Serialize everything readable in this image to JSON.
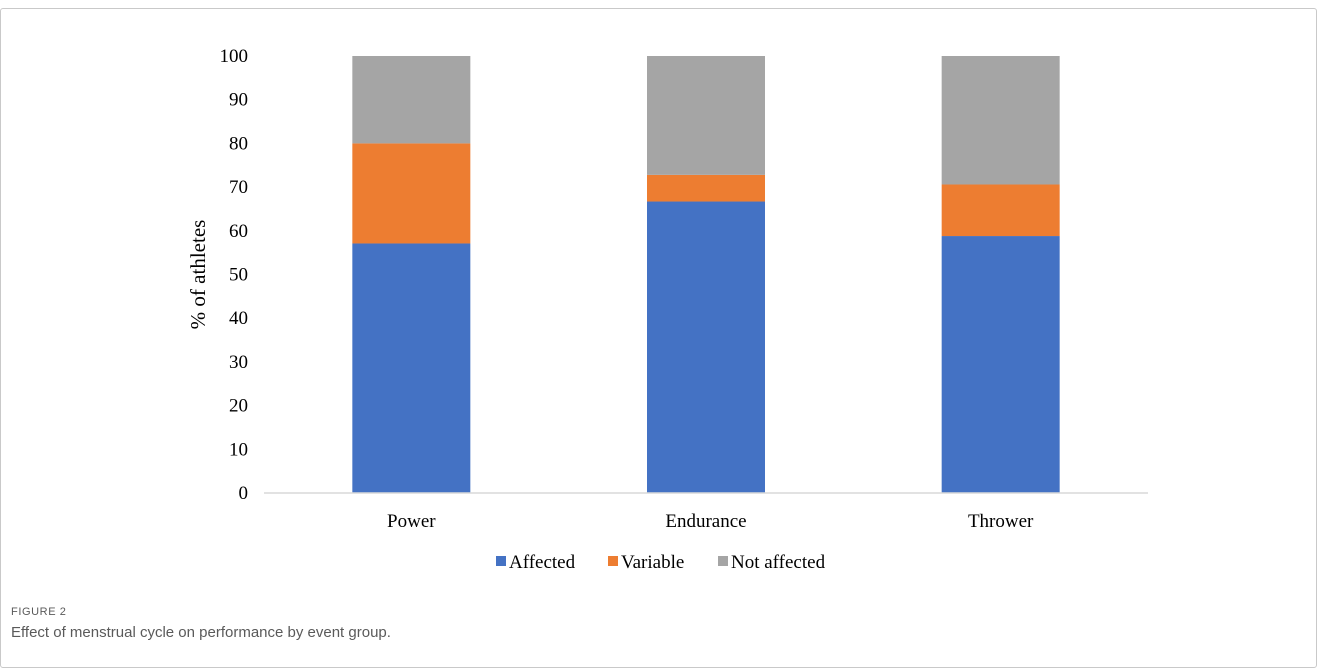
{
  "figure": {
    "label": "FIGURE 2",
    "caption": "Effect of menstrual cycle on performance by event group."
  },
  "chart_data": {
    "type": "bar",
    "stacked": true,
    "title": "",
    "xlabel": "",
    "ylabel": "% of athletes",
    "ylim": [
      0,
      100
    ],
    "yticks": [
      0,
      10,
      20,
      30,
      40,
      50,
      60,
      70,
      80,
      90,
      100
    ],
    "categories": [
      "Power",
      "Endurance",
      "Thrower"
    ],
    "series": [
      {
        "name": "Affected",
        "color": "#4472c4",
        "values": [
          57.1,
          66.7,
          58.8
        ]
      },
      {
        "name": "Variable",
        "color": "#ed7d31",
        "values": [
          22.9,
          6.1,
          11.8
        ]
      },
      {
        "name": "Not affected",
        "color": "#a5a5a5",
        "values": [
          20.0,
          27.2,
          29.4
        ]
      }
    ],
    "grid": false,
    "legend_position": "bottom"
  }
}
